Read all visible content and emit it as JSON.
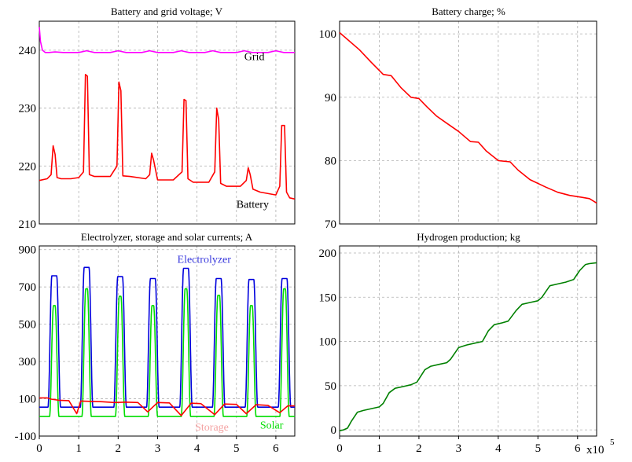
{
  "colors": {
    "magenta": "#ff00ff",
    "red": "#ff0000",
    "blue": "#0000dd",
    "green": "#00dd00",
    "darkgreen": "#008000",
    "salmon": "#f4a3a3"
  },
  "axis_multiplier": {
    "base": "x10",
    "exp": "5"
  },
  "chart_data": [
    {
      "type": "line",
      "title": "Battery and grid voltage; V",
      "xlim": [
        0,
        6.48
      ],
      "ylim": [
        210,
        245
      ],
      "yticks": [
        210,
        220,
        230,
        240
      ],
      "grid": true,
      "annotations": [
        {
          "text": "Grid",
          "x": 5.2,
          "y": 238.3
        },
        {
          "text": "Battery",
          "x": 5.0,
          "y": 212.8
        }
      ],
      "series": [
        {
          "name": "Grid",
          "color": "#ff00ff",
          "x": [
            0,
            0.03,
            0.08,
            0.15,
            0.25,
            0.4,
            0.6,
            0.8,
            1.0,
            1.2,
            1.4,
            1.6,
            1.8,
            2.0,
            2.2,
            2.4,
            2.6,
            2.8,
            3.0,
            3.2,
            3.4,
            3.6,
            3.8,
            4.0,
            4.2,
            4.4,
            4.6,
            4.8,
            5.0,
            5.2,
            5.4,
            5.6,
            5.8,
            6.0,
            6.2,
            6.48
          ],
          "y": [
            244,
            241.5,
            240,
            239.6,
            239.6,
            239.7,
            239.6,
            239.6,
            239.6,
            239.9,
            239.6,
            239.6,
            239.6,
            239.9,
            239.6,
            239.6,
            239.6,
            239.9,
            239.6,
            239.6,
            239.6,
            239.9,
            239.6,
            239.6,
            239.6,
            239.9,
            239.6,
            239.6,
            239.6,
            239.9,
            239.6,
            239.6,
            239.6,
            239.9,
            239.6,
            239.6
          ]
        },
        {
          "name": "Battery",
          "color": "#ff0000",
          "x": [
            0,
            0.2,
            0.3,
            0.35,
            0.4,
            0.45,
            0.55,
            0.8,
            1.0,
            1.12,
            1.17,
            1.22,
            1.27,
            1.4,
            1.8,
            1.97,
            2.02,
            2.07,
            2.12,
            2.3,
            2.7,
            2.8,
            2.85,
            2.9,
            3.0,
            3.4,
            3.62,
            3.67,
            3.72,
            3.77,
            3.9,
            4.3,
            4.45,
            4.5,
            4.55,
            4.6,
            4.75,
            5.1,
            5.25,
            5.3,
            5.35,
            5.42,
            5.6,
            6.0,
            6.1,
            6.15,
            6.22,
            6.27,
            6.35,
            6.48
          ],
          "y": [
            217.5,
            217.8,
            218.5,
            223.5,
            222,
            218,
            217.8,
            217.8,
            218,
            219,
            235.8,
            235.5,
            218.5,
            218.2,
            218.2,
            220,
            234.5,
            233,
            218.3,
            218.2,
            217.8,
            218.5,
            222.2,
            221,
            217.6,
            217.6,
            219,
            231.5,
            231.3,
            217.8,
            217.2,
            217.2,
            219,
            230,
            228,
            217,
            216.5,
            216.5,
            217.5,
            219.7,
            218.5,
            216,
            215.5,
            215,
            216.5,
            227,
            227,
            215.5,
            214.5,
            214.3
          ]
        }
      ]
    },
    {
      "type": "line",
      "title": "Battery charge; %",
      "xlim": [
        0,
        6.48
      ],
      "ylim": [
        70,
        102
      ],
      "yticks": [
        70,
        80,
        90,
        100
      ],
      "grid": true,
      "series": [
        {
          "name": "",
          "color": "#ff0000",
          "x": [
            0,
            0.5,
            0.8,
            1.1,
            1.3,
            1.55,
            1.8,
            2.0,
            2.2,
            2.45,
            2.7,
            3.0,
            3.3,
            3.5,
            3.7,
            4.0,
            4.3,
            4.5,
            4.8,
            5.2,
            5.5,
            5.8,
            6.1,
            6.3,
            6.48
          ],
          "y": [
            100.2,
            97.5,
            95.5,
            93.6,
            93.4,
            91.5,
            90,
            89.8,
            88.5,
            87,
            85.9,
            84.6,
            83,
            82.9,
            81.5,
            80,
            79.8,
            78.5,
            77,
            75.8,
            75,
            74.5,
            74.2,
            74,
            73.3
          ]
        }
      ]
    },
    {
      "type": "line",
      "title": "Electrolyzer, storage and solar currents; A",
      "xlim": [
        0,
        6.48
      ],
      "ylim": [
        -100,
        920
      ],
      "yticks": [
        -100,
        100,
        300,
        500,
        700,
        900
      ],
      "xticks": [
        0,
        1,
        2,
        3,
        4,
        5,
        6
      ],
      "grid": true,
      "annotations": [
        {
          "text": "Electrolyzer",
          "x": 3.5,
          "y": 830
        },
        {
          "text": "Storage",
          "x": 3.95,
          "y": -70
        },
        {
          "text": "Solar",
          "x": 5.6,
          "y": -60
        }
      ],
      "series": [
        {
          "name": "Electrolyzer",
          "color": "#0000dd",
          "peaks": [
            0.38,
            1.2,
            2.05,
            2.88,
            3.72,
            4.55,
            5.38,
            6.22
          ],
          "peak_values": [
            760,
            805,
            755,
            745,
            800,
            745,
            740,
            745
          ],
          "baseline": 55,
          "rise_width": 0.1,
          "flat_width": 0.12
        },
        {
          "name": "Solar",
          "color": "#00dd00",
          "peaks": [
            0.38,
            1.2,
            2.05,
            2.88,
            3.72,
            4.55,
            5.38,
            6.22
          ],
          "peak_values": [
            600,
            690,
            650,
            600,
            690,
            655,
            600,
            690
          ],
          "baseline": 5,
          "rise_width": 0.1,
          "flat_width": 0.04
        },
        {
          "name": "Storage",
          "color": "#ff0000",
          "x": [
            0,
            0.2,
            0.3,
            0.5,
            0.75,
            0.95,
            1.05,
            1.35,
            1.6,
            1.9,
            2.2,
            2.5,
            2.75,
            3.0,
            3.3,
            3.6,
            3.85,
            4.1,
            4.45,
            4.7,
            5.0,
            5.25,
            5.5,
            5.8,
            6.1,
            6.3,
            6.48
          ],
          "y": [
            105,
            105,
            98,
            92,
            90,
            20,
            88,
            86,
            84,
            80,
            82,
            80,
            30,
            80,
            78,
            10,
            76,
            74,
            15,
            72,
            70,
            20,
            68,
            65,
            25,
            62,
            62
          ]
        }
      ]
    },
    {
      "type": "line",
      "title": "Hydrogen production; kg",
      "xlim": [
        0,
        6.48
      ],
      "ylim": [
        -7,
        208
      ],
      "yticks": [
        0,
        50,
        100,
        150,
        200
      ],
      "xticks": [
        0,
        1,
        2,
        3,
        4,
        5,
        6
      ],
      "grid": true,
      "series": [
        {
          "name": "",
          "color": "#008000",
          "x": [
            0,
            0.1,
            0.2,
            0.3,
            0.45,
            0.6,
            0.8,
            1.0,
            1.1,
            1.25,
            1.4,
            1.6,
            1.8,
            1.95,
            2.15,
            2.3,
            2.5,
            2.7,
            2.8,
            3.0,
            3.2,
            3.4,
            3.6,
            3.75,
            3.9,
            4.1,
            4.25,
            4.45,
            4.6,
            4.8,
            5.0,
            5.1,
            5.3,
            5.5,
            5.7,
            5.9,
            6.05,
            6.2,
            6.3,
            6.48
          ],
          "y": [
            -1,
            0,
            2,
            10,
            20,
            22,
            24,
            26,
            30,
            42,
            47,
            49,
            51,
            54,
            68,
            72,
            74,
            76,
            80,
            93,
            96,
            98,
            100,
            112,
            119,
            121,
            123,
            135,
            142,
            144,
            146,
            150,
            163,
            165,
            167,
            170,
            180,
            187,
            188,
            189
          ]
        }
      ]
    }
  ]
}
